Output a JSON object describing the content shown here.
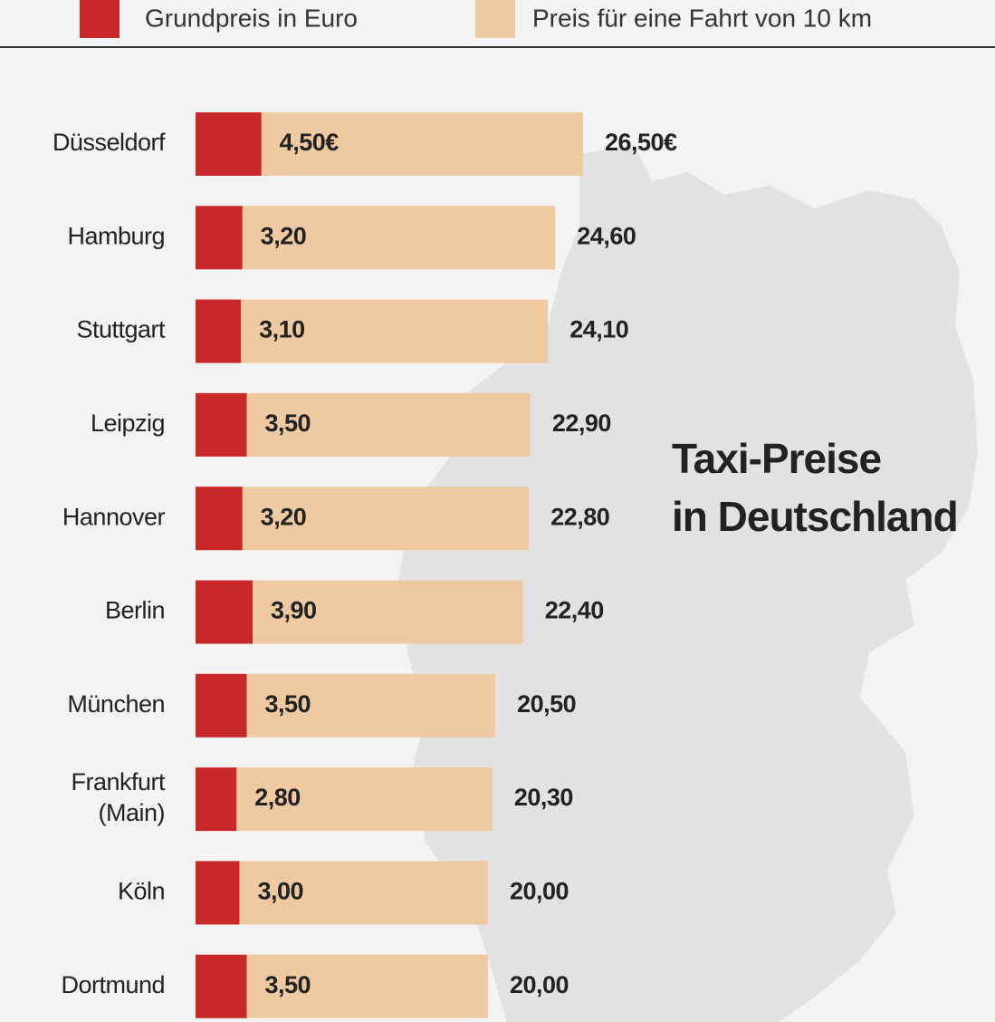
{
  "chart_data": {
    "type": "bar",
    "title": [
      "Taxi-Preise",
      "in Deutschland"
    ],
    "categories": [
      "Düsseldorf",
      "Hamburg",
      "Stuttgart",
      "Leipzig",
      "Hannover",
      "Berlin",
      "München",
      "Frankfurt (Main)",
      "Köln",
      "Dortmund"
    ],
    "series": [
      {
        "name": "Grundpreis in Euro",
        "color": "#c8282a",
        "values": [
          4.5,
          3.2,
          3.1,
          3.5,
          3.2,
          3.9,
          3.5,
          2.8,
          3.0,
          3.5
        ],
        "value_labels": [
          "4,50€",
          "3,20",
          "3,10",
          "3,50",
          "3,20",
          "3,90",
          "3,50",
          "2,80",
          "3,00",
          "3,50"
        ]
      },
      {
        "name": "Preis für eine Fahrt von 10 km",
        "color": "#efc9a1",
        "values": [
          26.5,
          24.6,
          24.1,
          22.9,
          22.8,
          22.4,
          20.5,
          20.3,
          20.0,
          20.0
        ],
        "value_labels": [
          "26,50€",
          "24,60",
          "24,10",
          "22,90",
          "22,80",
          "22,40",
          "20,50",
          "20,30",
          "20,00",
          "20,00"
        ]
      }
    ]
  }
}
